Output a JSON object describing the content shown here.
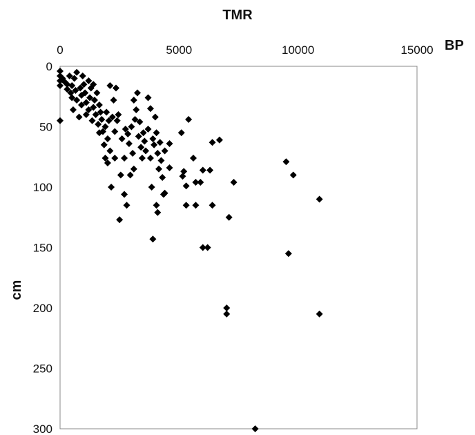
{
  "chart_data": {
    "type": "scatter",
    "title": "TMR",
    "xlabel": "BP",
    "ylabel": "cm",
    "x_axis_position": "top",
    "y_axis_inverted": true,
    "xlim": [
      0,
      15000
    ],
    "ylim": [
      0,
      300
    ],
    "xticks": [
      "0",
      "5000",
      "10000",
      "15000"
    ],
    "yticks": [
      "0",
      "50",
      "100",
      "150",
      "200",
      "250",
      "300"
    ],
    "grid": false,
    "marker": "diamond",
    "marker_color": "#000000",
    "points": [
      {
        "x": 0,
        "y": 4
      },
      {
        "x": 0,
        "y": 8
      },
      {
        "x": 0,
        "y": 12
      },
      {
        "x": 0,
        "y": 16
      },
      {
        "x": 0,
        "y": 45
      },
      {
        "x": 100,
        "y": 10
      },
      {
        "x": 200,
        "y": 13
      },
      {
        "x": 300,
        "y": 15
      },
      {
        "x": 300,
        "y": 19
      },
      {
        "x": 400,
        "y": 8
      },
      {
        "x": 450,
        "y": 22
      },
      {
        "x": 500,
        "y": 16
      },
      {
        "x": 500,
        "y": 26
      },
      {
        "x": 550,
        "y": 36
      },
      {
        "x": 600,
        "y": 10
      },
      {
        "x": 650,
        "y": 20
      },
      {
        "x": 700,
        "y": 28
      },
      {
        "x": 700,
        "y": 5
      },
      {
        "x": 800,
        "y": 42
      },
      {
        "x": 850,
        "y": 18
      },
      {
        "x": 900,
        "y": 24
      },
      {
        "x": 900,
        "y": 32
      },
      {
        "x": 950,
        "y": 8
      },
      {
        "x": 1000,
        "y": 15
      },
      {
        "x": 1050,
        "y": 22
      },
      {
        "x": 1100,
        "y": 30
      },
      {
        "x": 1100,
        "y": 40
      },
      {
        "x": 1200,
        "y": 12
      },
      {
        "x": 1200,
        "y": 36
      },
      {
        "x": 1250,
        "y": 26
      },
      {
        "x": 1300,
        "y": 18
      },
      {
        "x": 1350,
        "y": 45
      },
      {
        "x": 1400,
        "y": 15
      },
      {
        "x": 1400,
        "y": 34
      },
      {
        "x": 1450,
        "y": 28
      },
      {
        "x": 1500,
        "y": 40
      },
      {
        "x": 1550,
        "y": 22
      },
      {
        "x": 1600,
        "y": 48
      },
      {
        "x": 1650,
        "y": 55
      },
      {
        "x": 1650,
        "y": 32
      },
      {
        "x": 1700,
        "y": 38
      },
      {
        "x": 1750,
        "y": 44
      },
      {
        "x": 1800,
        "y": 54
      },
      {
        "x": 1850,
        "y": 65
      },
      {
        "x": 1900,
        "y": 76
      },
      {
        "x": 1900,
        "y": 50
      },
      {
        "x": 1950,
        "y": 38
      },
      {
        "x": 2000,
        "y": 80
      },
      {
        "x": 2000,
        "y": 60
      },
      {
        "x": 2050,
        "y": 45
      },
      {
        "x": 2100,
        "y": 16
      },
      {
        "x": 2100,
        "y": 70
      },
      {
        "x": 2150,
        "y": 100
      },
      {
        "x": 2200,
        "y": 42
      },
      {
        "x": 2250,
        "y": 28
      },
      {
        "x": 2300,
        "y": 54
      },
      {
        "x": 2300,
        "y": 76
      },
      {
        "x": 2350,
        "y": 18
      },
      {
        "x": 2400,
        "y": 45
      },
      {
        "x": 2450,
        "y": 40
      },
      {
        "x": 2500,
        "y": 127
      },
      {
        "x": 2550,
        "y": 90
      },
      {
        "x": 2600,
        "y": 60
      },
      {
        "x": 2700,
        "y": 76
      },
      {
        "x": 2700,
        "y": 106
      },
      {
        "x": 2750,
        "y": 52
      },
      {
        "x": 2800,
        "y": 115
      },
      {
        "x": 2850,
        "y": 56
      },
      {
        "x": 2900,
        "y": 64
      },
      {
        "x": 2950,
        "y": 90
      },
      {
        "x": 3000,
        "y": 50
      },
      {
        "x": 3050,
        "y": 72
      },
      {
        "x": 3100,
        "y": 85
      },
      {
        "x": 3100,
        "y": 28
      },
      {
        "x": 3150,
        "y": 44
      },
      {
        "x": 3200,
        "y": 36
      },
      {
        "x": 3250,
        "y": 22
      },
      {
        "x": 3300,
        "y": 58
      },
      {
        "x": 3350,
        "y": 46
      },
      {
        "x": 3400,
        "y": 67
      },
      {
        "x": 3450,
        "y": 76
      },
      {
        "x": 3500,
        "y": 55
      },
      {
        "x": 3550,
        "y": 62
      },
      {
        "x": 3600,
        "y": 70
      },
      {
        "x": 3700,
        "y": 26
      },
      {
        "x": 3700,
        "y": 52
      },
      {
        "x": 3800,
        "y": 35
      },
      {
        "x": 3800,
        "y": 76
      },
      {
        "x": 3850,
        "y": 100
      },
      {
        "x": 3900,
        "y": 60
      },
      {
        "x": 3900,
        "y": 143
      },
      {
        "x": 3950,
        "y": 65
      },
      {
        "x": 4000,
        "y": 42
      },
      {
        "x": 4050,
        "y": 55
      },
      {
        "x": 4050,
        "y": 115
      },
      {
        "x": 4100,
        "y": 121
      },
      {
        "x": 4100,
        "y": 72
      },
      {
        "x": 4150,
        "y": 85
      },
      {
        "x": 4200,
        "y": 63
      },
      {
        "x": 4250,
        "y": 78
      },
      {
        "x": 4300,
        "y": 92
      },
      {
        "x": 4350,
        "y": 106
      },
      {
        "x": 4400,
        "y": 70
      },
      {
        "x": 4400,
        "y": 105
      },
      {
        "x": 4600,
        "y": 64
      },
      {
        "x": 4600,
        "y": 84
      },
      {
        "x": 5100,
        "y": 55
      },
      {
        "x": 5150,
        "y": 91
      },
      {
        "x": 5200,
        "y": 87
      },
      {
        "x": 5300,
        "y": 115
      },
      {
        "x": 5300,
        "y": 99
      },
      {
        "x": 5400,
        "y": 44
      },
      {
        "x": 5600,
        "y": 76
      },
      {
        "x": 5700,
        "y": 115
      },
      {
        "x": 5700,
        "y": 96
      },
      {
        "x": 5900,
        "y": 96
      },
      {
        "x": 6000,
        "y": 86
      },
      {
        "x": 6000,
        "y": 150
      },
      {
        "x": 6200,
        "y": 150
      },
      {
        "x": 6300,
        "y": 86
      },
      {
        "x": 6400,
        "y": 115
      },
      {
        "x": 6400,
        "y": 63
      },
      {
        "x": 6700,
        "y": 61
      },
      {
        "x": 7000,
        "y": 200
      },
      {
        "x": 7000,
        "y": 205
      },
      {
        "x": 7100,
        "y": 125
      },
      {
        "x": 7300,
        "y": 96
      },
      {
        "x": 8200,
        "y": 300
      },
      {
        "x": 9500,
        "y": 79
      },
      {
        "x": 9600,
        "y": 155
      },
      {
        "x": 9800,
        "y": 90
      },
      {
        "x": 10900,
        "y": 110
      },
      {
        "x": 10900,
        "y": 205
      }
    ]
  }
}
